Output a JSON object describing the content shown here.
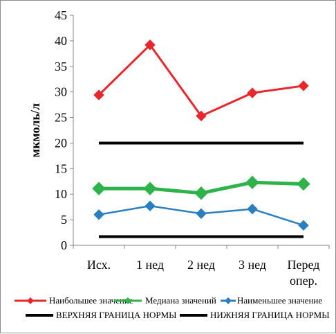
{
  "chart_data": {
    "type": "line",
    "ylabel": "мкмоль/л",
    "xlabel": "",
    "ylim": [
      0,
      45
    ],
    "yticks": [
      "0",
      "5",
      "10",
      "15",
      "20",
      "25",
      "30",
      "35",
      "40",
      "45"
    ],
    "categories": [
      [
        "Исх."
      ],
      [
        "1 нед"
      ],
      [
        "2 нед"
      ],
      [
        "3 нед"
      ],
      [
        "Перед",
        "опер."
      ]
    ],
    "series": [
      {
        "name": "Наибольшее значение",
        "color": "#e8262b",
        "marker": "diamond",
        "values": [
          29.4,
          39.2,
          25.3,
          29.8,
          31.2
        ]
      },
      {
        "name": "Медиана значений",
        "color": "#2db34a",
        "marker": "diamond",
        "values": [
          11.1,
          11.1,
          10.2,
          12.3,
          12.0
        ]
      },
      {
        "name": "Наименьшее значение",
        "color": "#2a7fc1",
        "marker": "diamond",
        "values": [
          6.0,
          7.7,
          6.2,
          7.1,
          3.9
        ]
      },
      {
        "name": "ВЕРХНЯЯ ГРАНИЦА НОРМЫ",
        "color": "#000000",
        "marker": "none",
        "values": [
          20,
          20,
          20,
          20,
          20
        ]
      },
      {
        "name": "НИЖНЯЯ ГРАНИЦА НОРМЫ",
        "color": "#000000",
        "marker": "none",
        "values": [
          1.7,
          1.7,
          1.7,
          1.7,
          1.7
        ]
      }
    ],
    "grid": false,
    "legend_position": "bottom"
  }
}
